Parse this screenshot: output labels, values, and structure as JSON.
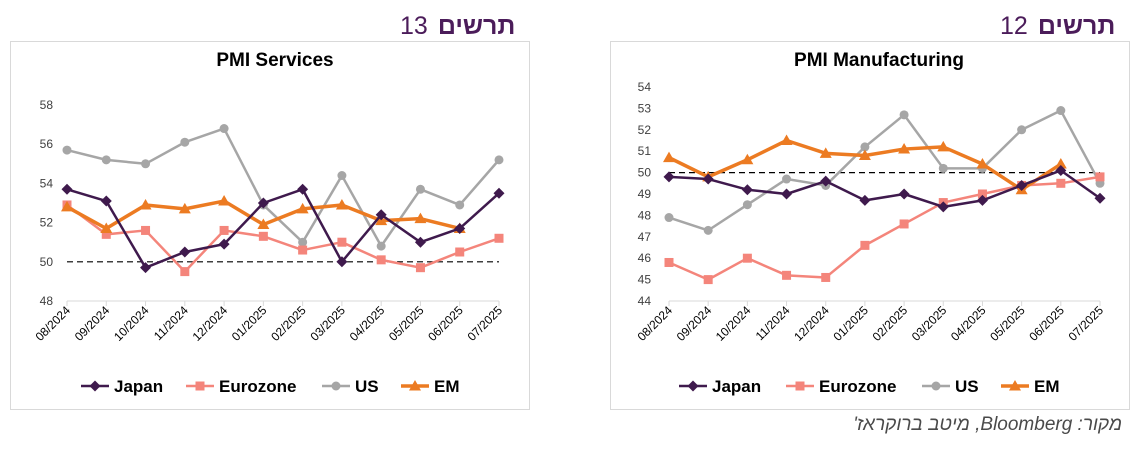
{
  "figures": {
    "left": {
      "word": "תרשים",
      "number": "13"
    },
    "right": {
      "word": "תרשים",
      "number": "12"
    }
  },
  "source": "מקור: Bloomberg, מיטב ברוקראז'",
  "chart_data": [
    {
      "type": "line",
      "title": "PMI Services",
      "categories": [
        "08/2024",
        "09/2024",
        "10/2024",
        "11/2024",
        "12/2024",
        "01/2025",
        "02/2025",
        "03/2025",
        "04/2025",
        "05/2025",
        "06/2025",
        "07/2025"
      ],
      "ylim": [
        48,
        58
      ],
      "yticks": [
        "48",
        "50",
        "52",
        "54",
        "56",
        "58"
      ],
      "reference_line": 50,
      "grid": false,
      "legend": "bottom",
      "series": [
        {
          "name": "Japan",
          "color": "#3f1a4d",
          "marker": "diamond",
          "values": [
            53.7,
            53.1,
            49.7,
            50.5,
            50.9,
            53.0,
            53.7,
            50.0,
            52.4,
            51.0,
            51.7,
            53.5
          ]
        },
        {
          "name": "Eurozone",
          "color": "#f4857b",
          "marker": "square",
          "values": [
            52.9,
            51.4,
            51.6,
            49.5,
            51.6,
            51.3,
            50.6,
            51.0,
            50.1,
            49.7,
            50.5,
            51.2
          ]
        },
        {
          "name": "US",
          "color": "#a6a6a6",
          "marker": "circle",
          "values": [
            55.7,
            55.2,
            55.0,
            56.1,
            56.8,
            52.9,
            51.0,
            54.4,
            50.8,
            53.7,
            52.9,
            55.2
          ]
        },
        {
          "name": "EM",
          "color": "#ec7b22",
          "marker": "triangle",
          "values": [
            52.8,
            51.7,
            52.9,
            52.7,
            53.1,
            51.9,
            52.7,
            52.9,
            52.1,
            52.2,
            51.7,
            null
          ]
        }
      ]
    },
    {
      "type": "line",
      "title": "PMI Manufacturing",
      "categories": [
        "08/2024",
        "09/2024",
        "10/2024",
        "11/2024",
        "12/2024",
        "01/2025",
        "02/2025",
        "03/2025",
        "04/2025",
        "05/2025",
        "06/2025",
        "07/2025"
      ],
      "ylim": [
        44,
        54
      ],
      "yticks": [
        "44",
        "45",
        "46",
        "47",
        "48",
        "49",
        "50",
        "51",
        "52",
        "53",
        "54"
      ],
      "reference_line": 50,
      "grid": false,
      "legend": "bottom",
      "series": [
        {
          "name": "Japan",
          "color": "#3f1a4d",
          "marker": "diamond",
          "values": [
            49.8,
            49.7,
            49.2,
            49.0,
            49.6,
            48.7,
            49.0,
            48.4,
            48.7,
            49.4,
            50.1,
            48.8
          ]
        },
        {
          "name": "Eurozone",
          "color": "#f4857b",
          "marker": "square",
          "values": [
            45.8,
            45.0,
            46.0,
            45.2,
            45.1,
            46.6,
            47.6,
            48.6,
            49.0,
            49.4,
            49.5,
            49.8
          ]
        },
        {
          "name": "US",
          "color": "#a6a6a6",
          "marker": "circle",
          "values": [
            47.9,
            47.3,
            48.5,
            49.7,
            49.4,
            51.2,
            52.7,
            50.2,
            50.2,
            52.0,
            52.9,
            49.5
          ]
        },
        {
          "name": "EM",
          "color": "#ec7b22",
          "marker": "triangle",
          "values": [
            50.7,
            49.8,
            50.6,
            51.5,
            50.9,
            50.8,
            51.1,
            51.2,
            50.4,
            49.2,
            50.4,
            null
          ]
        }
      ]
    }
  ]
}
